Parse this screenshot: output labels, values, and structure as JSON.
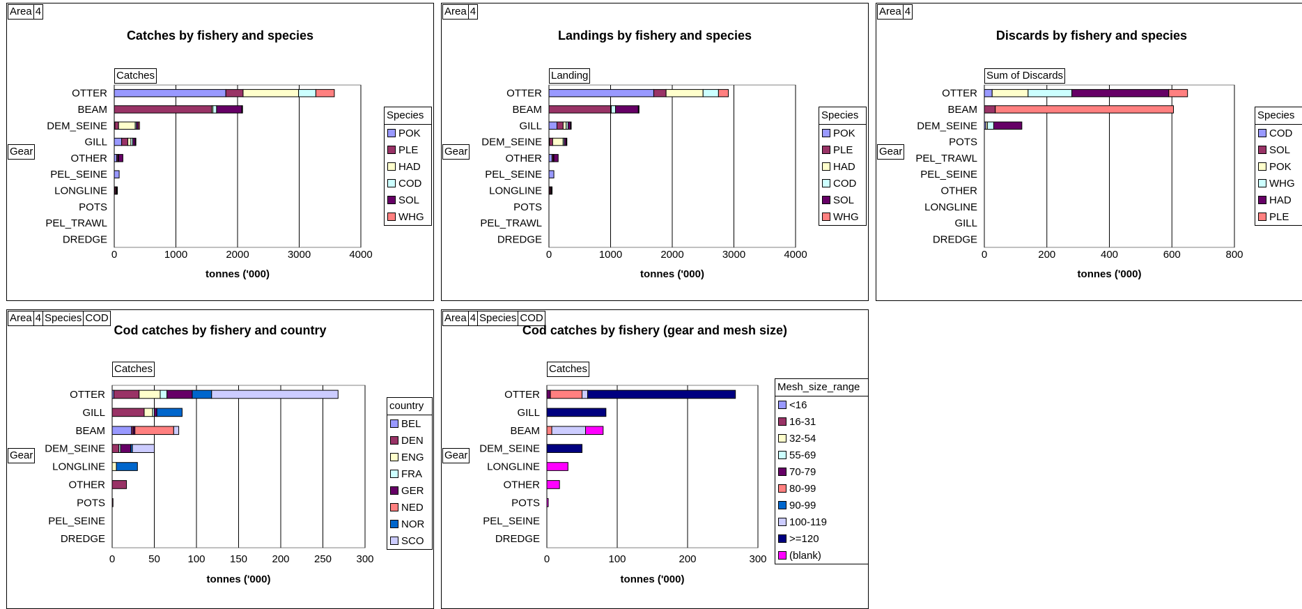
{
  "colors": {
    "POK": "#9999FF",
    "PLE": "#993366",
    "HAD": "#FFFFCC",
    "COD": "#CCFFFF",
    "SOL": "#660066",
    "WHG": "#FF8080",
    "BEL": "#9999FF",
    "DEN": "#993366",
    "ENG": "#FFFFCC",
    "FRA": "#CCFFFF",
    "GER": "#660066",
    "NED": "#FF8080",
    "NOR": "#0066CC",
    "SCO": "#CCCCFF",
    "m_lt16": "#9999FF",
    "m_16_31": "#993366",
    "m_32_54": "#FFFFCC",
    "m_55_69": "#CCFFFF",
    "m_70_79": "#660066",
    "m_80_99": "#FF8080",
    "m_90_99": "#0066CC",
    "m_100_119": "#CCCCFF",
    "m_ge120": "#000080",
    "m_blank": "#FF00FF"
  },
  "chart_data": [
    {
      "type": "bar",
      "stacked": true,
      "orientation": "horizontal",
      "filters": [
        "Area",
        "4"
      ],
      "title": "Catches by fishery and species",
      "data_field": "Catches",
      "row_field": "Gear",
      "legend_title": "Species",
      "xlabel": "tonnes ('000)",
      "xlim": [
        0,
        4000
      ],
      "xticks": [
        "0",
        "1000",
        "2000",
        "3000",
        "4000"
      ],
      "grid": "vertical",
      "categories": [
        "OTTER",
        "BEAM",
        "DEM_SEINE",
        "GILL",
        "OTHER",
        "PEL_SEINE",
        "LONGLINE",
        "POTS",
        "PEL_TRAWL",
        "DREDGE"
      ],
      "series": [
        {
          "name": "POK",
          "color_key": "POK",
          "values": [
            1810,
            0,
            10,
            120,
            40,
            80,
            10,
            0,
            0,
            0
          ]
        },
        {
          "name": "PLE",
          "color_key": "PLE",
          "values": [
            280,
            1580,
            60,
            100,
            20,
            0,
            20,
            0,
            0,
            0
          ]
        },
        {
          "name": "HAD",
          "color_key": "HAD",
          "values": [
            900,
            20,
            270,
            50,
            0,
            0,
            0,
            0,
            0,
            0
          ]
        },
        {
          "name": "COD",
          "color_key": "COD",
          "values": [
            280,
            60,
            20,
            30,
            10,
            0,
            10,
            0,
            0,
            0
          ]
        },
        {
          "name": "SOL",
          "color_key": "SOL",
          "values": [
            0,
            410,
            30,
            40,
            70,
            0,
            10,
            0,
            0,
            0
          ]
        },
        {
          "name": "WHG",
          "color_key": "WHG",
          "values": [
            300,
            10,
            20,
            10,
            0,
            0,
            0,
            0,
            0,
            0
          ]
        }
      ]
    },
    {
      "type": "bar",
      "stacked": true,
      "orientation": "horizontal",
      "filters": [
        "Area",
        "4"
      ],
      "title": "Landings by fishery and species",
      "data_field": "Landing",
      "row_field": "Gear",
      "legend_title": "Species",
      "xlabel": "tonnes ('000)",
      "xlim": [
        0,
        4000
      ],
      "xticks": [
        "0",
        "1000",
        "2000",
        "3000",
        "4000"
      ],
      "grid": "vertical",
      "categories": [
        "OTTER",
        "BEAM",
        "GILL",
        "DEM_SEINE",
        "OTHER",
        "PEL_SEINE",
        "LONGLINE",
        "POTS",
        "PEL_TRAWL",
        "DREDGE"
      ],
      "series": [
        {
          "name": "POK",
          "color_key": "POK",
          "values": [
            1700,
            0,
            130,
            10,
            50,
            80,
            10,
            0,
            0,
            0
          ]
        },
        {
          "name": "PLE",
          "color_key": "PLE",
          "values": [
            200,
            1000,
            100,
            50,
            20,
            0,
            20,
            0,
            0,
            0
          ]
        },
        {
          "name": "HAD",
          "color_key": "HAD",
          "values": [
            600,
            10,
            50,
            170,
            0,
            0,
            0,
            0,
            0,
            0
          ]
        },
        {
          "name": "COD",
          "color_key": "COD",
          "values": [
            250,
            70,
            30,
            20,
            10,
            0,
            10,
            0,
            0,
            0
          ]
        },
        {
          "name": "SOL",
          "color_key": "SOL",
          "values": [
            0,
            370,
            40,
            30,
            70,
            0,
            10,
            0,
            0,
            0
          ]
        },
        {
          "name": "WHG",
          "color_key": "WHG",
          "values": [
            160,
            10,
            10,
            10,
            0,
            0,
            0,
            0,
            0,
            0
          ]
        }
      ]
    },
    {
      "type": "bar",
      "stacked": true,
      "orientation": "horizontal",
      "filters": [
        "Area",
        "4"
      ],
      "title": "Discards by fishery and species",
      "data_field": "Sum of Discards",
      "row_field": "Gear",
      "legend_title": "Species",
      "xlabel": "tonnes ('000)",
      "xlim": [
        0,
        800
      ],
      "xticks": [
        "0",
        "200",
        "400",
        "600",
        "800"
      ],
      "grid": "vertical",
      "categories": [
        "OTTER",
        "BEAM",
        "DEM_SEINE",
        "POTS",
        "PEL_TRAWL",
        "PEL_SEINE",
        "OTHER",
        "LONGLINE",
        "GILL",
        "DREDGE"
      ],
      "series": [
        {
          "name": "COD",
          "color_key": "POK",
          "values": [
            25,
            0,
            5,
            0,
            0,
            0,
            0,
            0,
            0,
            0
          ]
        },
        {
          "name": "SOL",
          "color_key": "PLE",
          "values": [
            0,
            35,
            0,
            0,
            0,
            0,
            0,
            0,
            0,
            0
          ]
        },
        {
          "name": "POK",
          "color_key": "HAD",
          "values": [
            115,
            0,
            5,
            0,
            0,
            0,
            0,
            0,
            0,
            0
          ]
        },
        {
          "name": "WHG",
          "color_key": "COD",
          "values": [
            140,
            0,
            20,
            0,
            0,
            0,
            0,
            0,
            0,
            0
          ]
        },
        {
          "name": "HAD",
          "color_key": "SOL",
          "values": [
            310,
            0,
            90,
            0,
            0,
            0,
            0,
            0,
            0,
            0
          ]
        },
        {
          "name": "PLE",
          "color_key": "WHG",
          "values": [
            60,
            570,
            0,
            0,
            0,
            0,
            0,
            0,
            0,
            0
          ]
        }
      ]
    },
    {
      "type": "bar",
      "stacked": true,
      "orientation": "horizontal",
      "filters": [
        "Area",
        "4",
        "Species",
        "COD"
      ],
      "title": "Cod catches by fishery and country",
      "data_field": "Catches",
      "row_field": "Gear",
      "legend_title": "country",
      "xlabel": "tonnes ('000)",
      "xlim": [
        0,
        300
      ],
      "xticks": [
        "0",
        "50",
        "100",
        "150",
        "200",
        "250",
        "300"
      ],
      "grid": "vertical",
      "categories": [
        "OTTER",
        "GILL",
        "BEAM",
        "DEM_SEINE",
        "LONGLINE",
        "OTHER",
        "POTS",
        "PEL_SEINE",
        "DREDGE"
      ],
      "series": [
        {
          "name": "BEL",
          "color_key": "BEL",
          "values": [
            2,
            0,
            23,
            0,
            0,
            0,
            0,
            0,
            0
          ]
        },
        {
          "name": "DEN",
          "color_key": "DEN",
          "values": [
            30,
            38,
            2,
            8,
            0,
            17,
            1,
            0,
            0
          ]
        },
        {
          "name": "ENG",
          "color_key": "ENG",
          "values": [
            25,
            10,
            0,
            0,
            5,
            0,
            0,
            0,
            0
          ]
        },
        {
          "name": "FRA",
          "color_key": "FRA",
          "values": [
            8,
            2,
            0,
            2,
            0,
            0,
            0,
            0,
            0
          ]
        },
        {
          "name": "GER",
          "color_key": "GER",
          "values": [
            30,
            3,
            2,
            12,
            0,
            0,
            0,
            0,
            0
          ]
        },
        {
          "name": "NED",
          "color_key": "NED",
          "values": [
            0,
            0,
            46,
            0,
            0,
            0,
            0,
            0,
            0
          ]
        },
        {
          "name": "NOR",
          "color_key": "NOR",
          "values": [
            23,
            30,
            0,
            2,
            25,
            0,
            0,
            0,
            0
          ]
        },
        {
          "name": "SCO",
          "color_key": "SCO",
          "values": [
            150,
            0,
            6,
            26,
            0,
            0,
            0,
            0,
            0
          ]
        }
      ]
    },
    {
      "type": "bar",
      "stacked": true,
      "orientation": "horizontal",
      "filters": [
        "Area",
        "4",
        "Species",
        "COD"
      ],
      "title": "Cod catches by fishery (gear and mesh size)",
      "data_field": "Catches",
      "row_field": "Gear",
      "legend_title": "Mesh_size_range",
      "xlabel": "tonnes ('000)",
      "xlim": [
        0,
        300
      ],
      "xticks": [
        "0",
        "100",
        "200",
        "300"
      ],
      "grid": "vertical",
      "categories": [
        "OTTER",
        "GILL",
        "BEAM",
        "DEM_SEINE",
        "LONGLINE",
        "OTHER",
        "POTS",
        "PEL_SEINE",
        "DREDGE"
      ],
      "series": [
        {
          "name": "<16",
          "color_key": "m_lt16",
          "values": [
            0,
            0,
            0,
            0,
            0,
            0,
            0,
            0,
            0
          ]
        },
        {
          "name": "16-31",
          "color_key": "m_16_31",
          "values": [
            0,
            0,
            0,
            0,
            0,
            0,
            0,
            0,
            0
          ]
        },
        {
          "name": "32-54",
          "color_key": "m_32_54",
          "values": [
            0,
            0,
            0,
            0,
            0,
            0,
            0,
            0,
            0
          ]
        },
        {
          "name": "55-69",
          "color_key": "m_55_69",
          "values": [
            0,
            0,
            0,
            0,
            0,
            0,
            0,
            0,
            0
          ]
        },
        {
          "name": "70-79",
          "color_key": "m_70_79",
          "values": [
            5,
            0,
            0,
            0,
            0,
            0,
            0,
            0,
            0
          ]
        },
        {
          "name": "80-99",
          "color_key": "m_80_99",
          "values": [
            45,
            0,
            7,
            0,
            0,
            0,
            0,
            0,
            0
          ]
        },
        {
          "name": "90-99",
          "color_key": "m_90_99",
          "values": [
            0,
            0,
            0,
            0,
            0,
            0,
            0,
            0,
            0
          ]
        },
        {
          "name": "100-119",
          "color_key": "m_100_119",
          "values": [
            8,
            0,
            48,
            0,
            0,
            0,
            0,
            0,
            0
          ]
        },
        {
          "name": ">=120",
          "color_key": "m_ge120",
          "values": [
            210,
            84,
            0,
            50,
            0,
            0,
            0,
            0,
            0
          ]
        },
        {
          "name": "(blank)",
          "color_key": "m_blank",
          "values": [
            0,
            0,
            25,
            0,
            30,
            18,
            2,
            0,
            0
          ]
        }
      ]
    }
  ]
}
